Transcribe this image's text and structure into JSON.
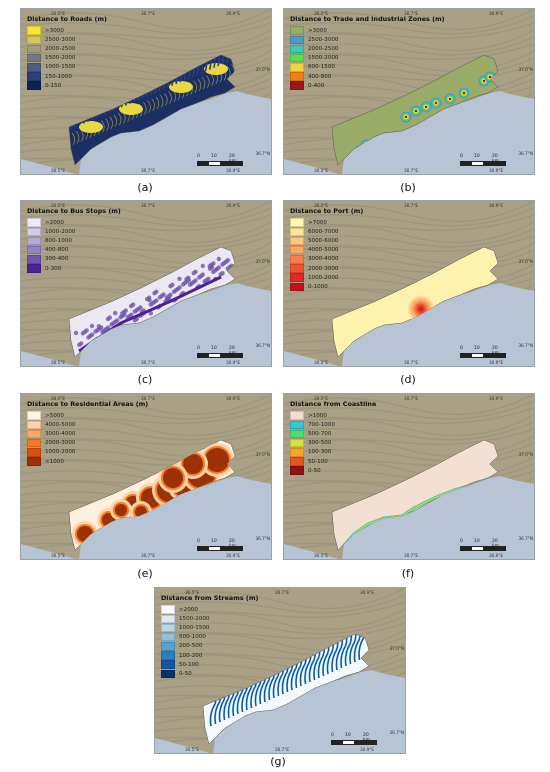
{
  "panels": [
    {
      "id": "a",
      "caption": "(a)",
      "title": "Distance to Roads (m)",
      "legend": [
        {
          "label": ">3000",
          "color": "#f5e535"
        },
        {
          "label": "2500-3000",
          "color": "#d6c65c"
        },
        {
          "label": "2000-2500",
          "color": "#a39c78"
        },
        {
          "label": "1500-2000",
          "color": "#747b80"
        },
        {
          "label": "1000-1500",
          "color": "#4f5d83"
        },
        {
          "label": "150-1000",
          "color": "#2c3f7a"
        },
        {
          "label": "0-150",
          "color": "#0e2256"
        }
      ],
      "fill": "#1c2f63",
      "accent": "#e9d940"
    },
    {
      "id": "b",
      "caption": "(b)",
      "title": "Distance to Trade and Industrial Zones (m)",
      "legend": [
        {
          "label": ">3000",
          "color": "#9aab68"
        },
        {
          "label": "2500-3000",
          "color": "#4a9ec9"
        },
        {
          "label": "2000-2500",
          "color": "#41c7b6"
        },
        {
          "label": "1500-2000",
          "color": "#5fdc4d"
        },
        {
          "label": "800-1500",
          "color": "#f2d23a"
        },
        {
          "label": "400-800",
          "color": "#ef7f1b"
        },
        {
          "label": "0-400",
          "color": "#9a1717"
        }
      ],
      "fill": "#9aab68",
      "accent": "#3fa6cf"
    },
    {
      "id": "c",
      "caption": "(c)",
      "title": "Distance to Bus Stops (m)",
      "legend": [
        {
          "label": ">2000",
          "color": "#eeeaf5"
        },
        {
          "label": "1000-2000",
          "color": "#d3cce7"
        },
        {
          "label": "800-1000",
          "color": "#b4a8d6"
        },
        {
          "label": "400-800",
          "color": "#9281c3"
        },
        {
          "label": "300-400",
          "color": "#6f55ad"
        },
        {
          "label": "0-300",
          "color": "#4b2393"
        }
      ],
      "fill": "#ebe7f3",
      "accent": "#6a3fb0"
    },
    {
      "id": "d",
      "caption": "(d)",
      "title": "Distance to Port (m)",
      "legend": [
        {
          "label": ">7000",
          "color": "#fdf6b3"
        },
        {
          "label": "6000-7000",
          "color": "#fde69a"
        },
        {
          "label": "5000-6000",
          "color": "#fcc97c"
        },
        {
          "label": "4000-5000",
          "color": "#fba663"
        },
        {
          "label": "3000-4000",
          "color": "#f77e4c"
        },
        {
          "label": "2000-3000",
          "color": "#ef5337"
        },
        {
          "label": "1000-2000",
          "color": "#dd2a25"
        },
        {
          "label": "0-1000",
          "color": "#c0111d"
        }
      ],
      "fill": "#fdf3ae",
      "accent": "#e83a2a"
    },
    {
      "id": "e",
      "caption": "(e)",
      "title": "Distance to Residential Areas (m)",
      "legend": [
        {
          "label": ">5000",
          "color": "#fff3e6"
        },
        {
          "label": "4000-5000",
          "color": "#fdd4a9"
        },
        {
          "label": "3000-4000",
          "color": "#fca863"
        },
        {
          "label": "2000-3000",
          "color": "#f57a25"
        },
        {
          "label": "1000-2000",
          "color": "#d4510e"
        },
        {
          "label": "<1000",
          "color": "#9b3104"
        }
      ],
      "fill": "#fff0de",
      "accent": "#b84008"
    },
    {
      "id": "f",
      "caption": "(f)",
      "title": "Distance from Coastline",
      "legend": [
        {
          "label": ">1000",
          "color": "#f3ddd0"
        },
        {
          "label": "700-1000",
          "color": "#37c6d8"
        },
        {
          "label": "500-700",
          "color": "#4fdc6f"
        },
        {
          "label": "300-500",
          "color": "#d5e13c"
        },
        {
          "label": "100-300",
          "color": "#f4a52b"
        },
        {
          "label": "50-100",
          "color": "#e55424"
        },
        {
          "label": "0-50",
          "color": "#8c1512"
        }
      ],
      "fill": "#f3e0d3",
      "accent": "#45c7a8"
    },
    {
      "id": "g",
      "caption": "(g)",
      "title": "Distance from Streams (m)",
      "legend": [
        {
          "label": ">2000",
          "color": "#f7fbff"
        },
        {
          "label": "1500-2000",
          "color": "#dbe9f6"
        },
        {
          "label": "1000-1500",
          "color": "#b9d6eb"
        },
        {
          "label": "500-1000",
          "color": "#8ec1de"
        },
        {
          "label": "200-500",
          "color": "#58a1cf"
        },
        {
          "label": "100-200",
          "color": "#2f7fbd"
        },
        {
          "label": "50-100",
          "color": "#13569d"
        },
        {
          "label": "0-50",
          "color": "#0a316a"
        }
      ],
      "fill": "#f5f9fd",
      "accent": "#2a8bd0"
    }
  ],
  "scale": {
    "labels": [
      "0",
      "10",
      "20 km"
    ]
  },
  "coords": {
    "lon_left": "30.5°E",
    "lon_mid": "30.7°E",
    "lon_right": "30.9°E",
    "lat_top": "37.0°N",
    "lat_bot": "36.7°N"
  },
  "colors": {
    "sea": "#b6c4d6",
    "terrain": "#a9a085",
    "terrain_dark": "#8c8468"
  }
}
